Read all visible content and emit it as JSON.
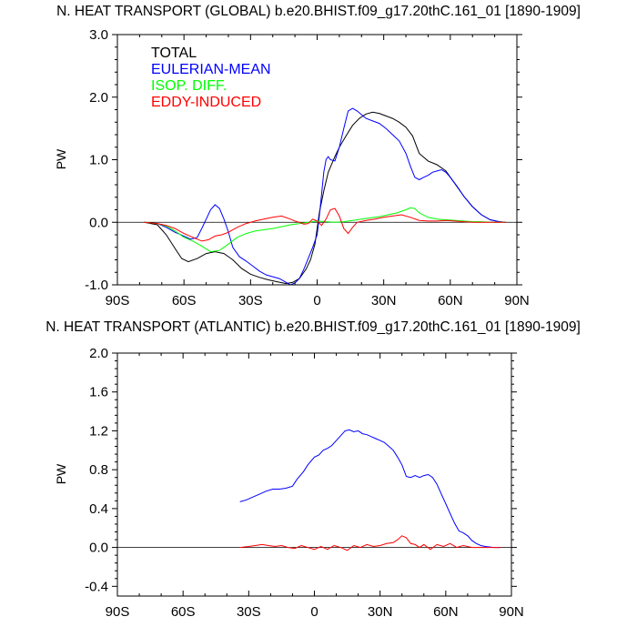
{
  "chart_data": [
    {
      "type": "line",
      "title": "N. HEAT TRANSPORT (GLOBAL) b.e20.BHIST.f09_g17.20thC.161_01 [1890-1909]",
      "xlabel": "",
      "ylabel": "PW",
      "xlim": [
        -90,
        90
      ],
      "ylim": [
        -1.0,
        3.0
      ],
      "xticks": [
        -90,
        -60,
        -30,
        0,
        30,
        60,
        90
      ],
      "xtick_labels": [
        "90S",
        "60S",
        "30S",
        "0",
        "30N",
        "60N",
        "90N"
      ],
      "yticks": [
        -1.0,
        0.0,
        1.0,
        2.0,
        3.0
      ],
      "ytick_labels": [
        "-1.0",
        "0.0",
        "1.0",
        "2.0",
        "3.0"
      ],
      "legend": [
        "TOTAL",
        "EULERIAN-MEAN",
        "ISOP. DIFF.",
        "EDDY-INDUCED"
      ],
      "legend_position": "top-left",
      "series": [
        {
          "name": "TOTAL",
          "color": "#000000",
          "x": [
            -78,
            -72,
            -68,
            -64,
            -61,
            -58,
            -54,
            -50,
            -46,
            -42,
            -38,
            -34,
            -30,
            -26,
            -22,
            -18,
            -14,
            -11,
            -8,
            -5,
            -3,
            -1,
            0,
            1,
            3,
            5,
            8,
            10,
            13,
            16,
            19,
            22,
            25,
            28,
            31,
            34,
            37,
            40,
            43,
            46,
            50,
            54,
            58,
            62,
            66,
            70,
            74,
            78,
            82,
            85
          ],
          "y": [
            0,
            -0.04,
            -0.2,
            -0.42,
            -0.58,
            -0.63,
            -0.58,
            -0.5,
            -0.47,
            -0.5,
            -0.6,
            -0.74,
            -0.83,
            -0.88,
            -0.92,
            -0.95,
            -0.98,
            -0.96,
            -0.9,
            -0.75,
            -0.6,
            -0.35,
            -0.1,
            0.15,
            0.5,
            0.8,
            1.05,
            1.2,
            1.38,
            1.55,
            1.66,
            1.73,
            1.76,
            1.74,
            1.7,
            1.66,
            1.6,
            1.52,
            1.38,
            1.1,
            0.98,
            0.92,
            0.82,
            0.62,
            0.42,
            0.25,
            0.12,
            0.04,
            0.01,
            0
          ]
        },
        {
          "name": "EULERIAN-MEAN",
          "color": "#0000ff",
          "x": [
            -78,
            -72,
            -68,
            -64,
            -60,
            -57,
            -54,
            -52,
            -50,
            -48,
            -46,
            -44,
            -42,
            -40,
            -38,
            -35,
            -32,
            -29,
            -26,
            -23,
            -20,
            -17,
            -14,
            -12,
            -10,
            -8,
            -6,
            -4,
            -2,
            0,
            1,
            2,
            3,
            4,
            5,
            6,
            8,
            10,
            12,
            14,
            16,
            18,
            20,
            22,
            25,
            28,
            31,
            34,
            37,
            40,
            42,
            44,
            46,
            48,
            50,
            52,
            54,
            56,
            58,
            60,
            63,
            66,
            70,
            74,
            78,
            82,
            85
          ],
          "y": [
            0,
            -0.02,
            -0.08,
            -0.16,
            -0.22,
            -0.27,
            -0.24,
            -0.1,
            0.05,
            0.2,
            0.28,
            0.22,
            0.05,
            -0.15,
            -0.4,
            -0.55,
            -0.62,
            -0.7,
            -0.78,
            -0.84,
            -0.87,
            -0.9,
            -0.96,
            -1.0,
            -0.97,
            -0.9,
            -0.75,
            -0.58,
            -0.4,
            -0.2,
            0.1,
            0.45,
            0.8,
            1.0,
            1.05,
            1.0,
            0.98,
            1.2,
            1.5,
            1.78,
            1.82,
            1.78,
            1.72,
            1.66,
            1.62,
            1.58,
            1.5,
            1.4,
            1.3,
            1.1,
            0.9,
            0.72,
            0.68,
            0.72,
            0.75,
            0.8,
            0.82,
            0.84,
            0.8,
            0.72,
            0.58,
            0.42,
            0.25,
            0.12,
            0.04,
            0.01,
            0
          ]
        },
        {
          "name": "ISOP. DIFF.",
          "color": "#00ff00",
          "x": [
            -78,
            -72,
            -68,
            -64,
            -60,
            -56,
            -52,
            -48,
            -44,
            -40,
            -36,
            -32,
            -28,
            -24,
            -20,
            -16,
            -12,
            -8,
            -4,
            0,
            4,
            8,
            12,
            16,
            20,
            24,
            28,
            32,
            36,
            40,
            42,
            44,
            46,
            50,
            54,
            58,
            62,
            66,
            70,
            74,
            78,
            82,
            85
          ],
          "y": [
            0,
            -0.02,
            -0.06,
            -0.14,
            -0.24,
            -0.3,
            -0.38,
            -0.47,
            -0.45,
            -0.35,
            -0.24,
            -0.18,
            -0.14,
            -0.12,
            -0.1,
            -0.07,
            -0.04,
            -0.02,
            0.0,
            0.02,
            0.01,
            0.0,
            0.01,
            0.03,
            0.05,
            0.07,
            0.09,
            0.12,
            0.15,
            0.2,
            0.23,
            0.22,
            0.15,
            0.08,
            0.05,
            0.04,
            0.03,
            0.02,
            0.01,
            0.01,
            0,
            0,
            0
          ]
        },
        {
          "name": "EDDY-INDUCED",
          "color": "#ff0000",
          "x": [
            -78,
            -72,
            -68,
            -64,
            -60,
            -56,
            -52,
            -49,
            -46,
            -43,
            -40,
            -36,
            -32,
            -28,
            -24,
            -20,
            -16,
            -12,
            -10,
            -8,
            -6,
            -4,
            -2,
            0,
            2,
            4,
            6,
            8,
            10,
            12,
            14,
            16,
            18,
            22,
            26,
            30,
            34,
            38,
            42,
            46,
            50,
            54,
            58,
            62,
            66,
            70,
            74,
            78,
            85
          ],
          "y": [
            0,
            -0.02,
            -0.05,
            -0.1,
            -0.18,
            -0.24,
            -0.3,
            -0.28,
            -0.22,
            -0.2,
            -0.16,
            -0.08,
            -0.02,
            0.02,
            0.05,
            0.08,
            0.1,
            0.05,
            0.02,
            0.0,
            -0.03,
            -0.02,
            0.05,
            0.02,
            -0.05,
            0.05,
            0.2,
            0.22,
            0.1,
            -0.1,
            -0.18,
            -0.08,
            0.0,
            0.03,
            0.05,
            0.08,
            0.1,
            0.12,
            0.08,
            0.03,
            0.02,
            0.02,
            0.03,
            0.02,
            0.01,
            0.0,
            0.0,
            0.0,
            0
          ]
        }
      ]
    },
    {
      "type": "line",
      "title": "N. HEAT TRANSPORT (ATLANTIC) b.e20.BHIST.f09_g17.20thC.161_01 [1890-1909]",
      "xlabel": "",
      "ylabel": "PW",
      "xlim": [
        -90,
        90
      ],
      "ylim": [
        -0.5,
        2.0
      ],
      "xticks": [
        -90,
        -60,
        -30,
        0,
        30,
        60,
        90
      ],
      "xtick_labels": [
        "90S",
        "60S",
        "30S",
        "0",
        "30N",
        "60N",
        "90N"
      ],
      "yticks": [
        -0.4,
        0.0,
        0.4,
        0.8,
        1.2,
        1.6,
        2.0
      ],
      "ytick_labels": [
        "-0.4",
        "0.0",
        "0.4",
        "0.8",
        "1.2",
        "1.6",
        "2.0"
      ],
      "series": [
        {
          "name": "EULERIAN-MEAN",
          "color": "#0000ff",
          "x": [
            -34,
            -31,
            -28,
            -25,
            -22,
            -19,
            -16,
            -13,
            -10,
            -8,
            -5,
            -3,
            0,
            2,
            4,
            6,
            8,
            10,
            12,
            14,
            16,
            18,
            20,
            22,
            24,
            26,
            28,
            30,
            32,
            34,
            36,
            38,
            40,
            42,
            44,
            46,
            48,
            50,
            52,
            54,
            56,
            58,
            60,
            62,
            64,
            66,
            68,
            70,
            72,
            74,
            76,
            78,
            82,
            85
          ],
          "y": [
            0.47,
            0.49,
            0.52,
            0.55,
            0.58,
            0.6,
            0.6,
            0.61,
            0.63,
            0.7,
            0.78,
            0.85,
            0.93,
            0.95,
            1.0,
            1.02,
            1.05,
            1.1,
            1.15,
            1.2,
            1.21,
            1.19,
            1.2,
            1.17,
            1.16,
            1.14,
            1.12,
            1.1,
            1.08,
            1.04,
            1.0,
            0.93,
            0.85,
            0.73,
            0.72,
            0.74,
            0.72,
            0.74,
            0.75,
            0.72,
            0.65,
            0.55,
            0.45,
            0.35,
            0.25,
            0.17,
            0.15,
            0.12,
            0.07,
            0.04,
            0.02,
            0.01,
            0,
            0
          ]
        },
        {
          "name": "EDDY-INDUCED",
          "color": "#ff0000",
          "x": [
            -34,
            -30,
            -27,
            -24,
            -21,
            -18,
            -15,
            -12,
            -9,
            -6,
            -3,
            0,
            3,
            6,
            9,
            12,
            15,
            18,
            21,
            24,
            27,
            30,
            33,
            36,
            38,
            40,
            42,
            44,
            46,
            48,
            50,
            53,
            56,
            59,
            62,
            65,
            68,
            72,
            76,
            80,
            85
          ],
          "y": [
            0,
            0.01,
            0.02,
            0.03,
            0.02,
            0.01,
            0.02,
            0.0,
            -0.01,
            0.02,
            0.0,
            -0.02,
            0.01,
            -0.02,
            0.02,
            0.0,
            -0.03,
            0.02,
            0.0,
            0.03,
            0.01,
            0.02,
            0.04,
            0.05,
            0.08,
            0.12,
            0.1,
            0.04,
            0.03,
            0.0,
            0.03,
            -0.02,
            0.03,
            0.01,
            0.04,
            0.0,
            0.02,
            0.0,
            0.0,
            0.0,
            0
          ]
        }
      ]
    }
  ]
}
